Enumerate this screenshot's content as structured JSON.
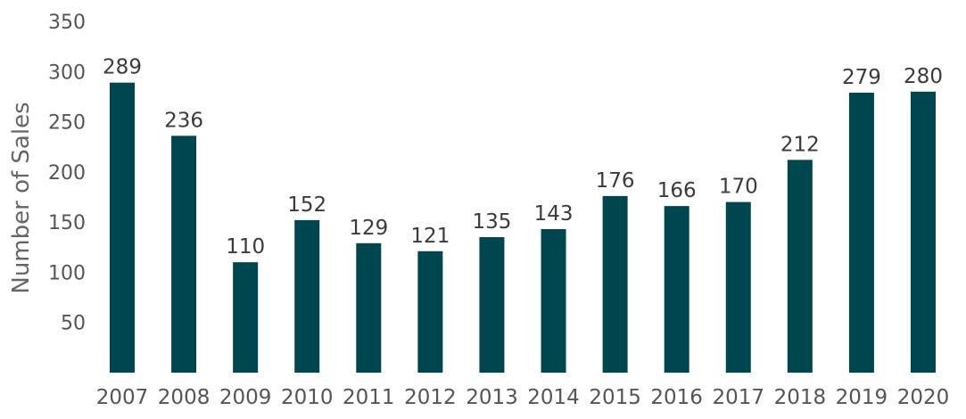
{
  "chart_data": {
    "type": "bar",
    "title": "",
    "xlabel": "",
    "ylabel": "Number of Sales",
    "categories": [
      "2007",
      "2008",
      "2009",
      "2010",
      "2011",
      "2012",
      "2013",
      "2014",
      "2015",
      "2016",
      "2017",
      "2018",
      "2019",
      "2020"
    ],
    "values": [
      289,
      236,
      110,
      152,
      129,
      121,
      135,
      143,
      176,
      166,
      170,
      212,
      279,
      280
    ],
    "ylim": [
      0,
      350
    ],
    "yticks": [
      50,
      100,
      150,
      200,
      250,
      300,
      350
    ],
    "grid": false,
    "legend": "none",
    "bar_color": "#00464f"
  }
}
